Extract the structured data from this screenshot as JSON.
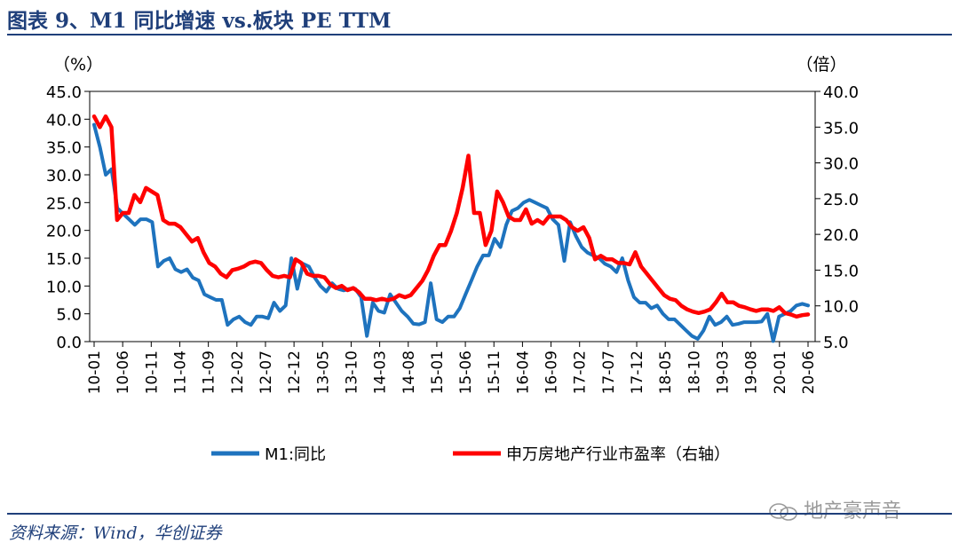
{
  "header": {
    "title": "图表 9、M1 同比增速 vs.板块 PE TTM"
  },
  "footer": {
    "source": "资料来源：Wind，华创证券",
    "watermark": "地产豪声音"
  },
  "colors": {
    "m1": "#1e73be",
    "pe": "#ff0000",
    "brand": "#1f3f7a"
  },
  "chart_data": {
    "type": "line",
    "title": "M1 同比增速 vs.板块 PE TTM",
    "left_axis": {
      "unit": "（%）",
      "ylim": [
        0,
        45
      ],
      "ticks": [
        "0.0",
        "5.0",
        "10.0",
        "15.0",
        "20.0",
        "25.0",
        "30.0",
        "35.0",
        "40.0",
        "45.0"
      ]
    },
    "right_axis": {
      "unit": "（倍）",
      "ylim": [
        5,
        40
      ],
      "ticks": [
        "5.0",
        "10.0",
        "15.0",
        "20.0",
        "25.0",
        "30.0",
        "35.0",
        "40.0"
      ]
    },
    "x_tick_labels": [
      "10-01",
      "10-06",
      "10-11",
      "11-04",
      "11-09",
      "12-02",
      "12-07",
      "12-12",
      "13-05",
      "13-10",
      "14-03",
      "14-08",
      "15-01",
      "15-06",
      "15-11",
      "16-04",
      "16-09",
      "17-02",
      "17-07",
      "17-12",
      "18-05",
      "18-10",
      "19-03",
      "19-08",
      "20-01",
      "20-06"
    ],
    "legend": {
      "placement": "bottom"
    },
    "series": [
      {
        "name": "M1:同比",
        "axis": "left",
        "values": [
          39,
          35,
          30,
          31,
          24,
          23,
          22,
          21,
          22,
          22,
          21.5,
          13.5,
          14.5,
          15,
          13,
          12.5,
          13,
          11.5,
          11,
          8.5,
          8,
          7.5,
          7.5,
          3,
          4,
          4.5,
          3.5,
          3,
          4.5,
          4.5,
          4.2,
          7,
          5.5,
          6.5,
          15,
          9.5,
          14,
          13.5,
          11.5,
          10,
          9,
          10.5,
          9.5,
          9.2,
          9.5,
          9.5,
          8,
          1,
          7,
          5.5,
          5.2,
          8.5,
          7,
          5.5,
          4.5,
          3.2,
          3.1,
          3.5,
          10.5,
          4,
          3.5,
          4.5,
          4.5,
          6,
          8.5,
          11,
          13.5,
          15.5,
          15.5,
          18.5,
          17,
          21,
          23.5,
          24,
          25,
          25.5,
          25,
          24.5,
          24,
          22,
          21,
          14.5,
          21.5,
          19,
          17,
          16,
          15.5,
          15,
          14,
          13.5,
          12.5,
          15,
          11,
          8,
          7,
          7,
          6,
          6.5,
          5,
          4,
          4,
          3,
          2,
          1,
          0.5,
          2,
          4.5,
          3,
          3.5,
          4.5,
          3,
          3.2,
          3.5,
          3.5,
          3.5,
          3.6,
          5,
          0.1,
          4.5,
          5,
          5.5,
          6.5,
          6.8,
          6.5
        ]
      },
      {
        "name": "申万房地产行业市盈率（右轴）",
        "axis": "right",
        "values": [
          36.5,
          35,
          36.5,
          35,
          22,
          23,
          23,
          25.5,
          24.5,
          26.5,
          26,
          25.5,
          22,
          21.5,
          21.5,
          21,
          20,
          19,
          19.5,
          17.5,
          16,
          15.5,
          14.5,
          14,
          15,
          15.2,
          15.5,
          16,
          16.2,
          16,
          15,
          14.2,
          14,
          14.2,
          14,
          16.5,
          16,
          14.5,
          14.2,
          14.2,
          14,
          13,
          12.5,
          12.8,
          12.2,
          12.5,
          11.9,
          11,
          11,
          10.8,
          11,
          10.8,
          11,
          11.5,
          11.2,
          11.5,
          12.5,
          13.5,
          15,
          17,
          18.5,
          18.5,
          20.5,
          23,
          26.5,
          31,
          23,
          23,
          18.5,
          20.5,
          26,
          24.5,
          22.5,
          22,
          22,
          23.5,
          21.5,
          22,
          21.5,
          22.5,
          22.5,
          22.5,
          22,
          21,
          20.5,
          21,
          19.5,
          16.5,
          17,
          16.5,
          16.5,
          16,
          16,
          15.8,
          17.5,
          15.5,
          14.5,
          13.5,
          12.5,
          11.5,
          11,
          10.8,
          10,
          9.5,
          9.2,
          9,
          9.2,
          9.5,
          10.5,
          11.7,
          10.5,
          10.5,
          10,
          9.8,
          9.5,
          9.3,
          9.5,
          9.5,
          9.3,
          9.8,
          9,
          8.8,
          8.5,
          8.7,
          8.8
        ]
      }
    ]
  }
}
